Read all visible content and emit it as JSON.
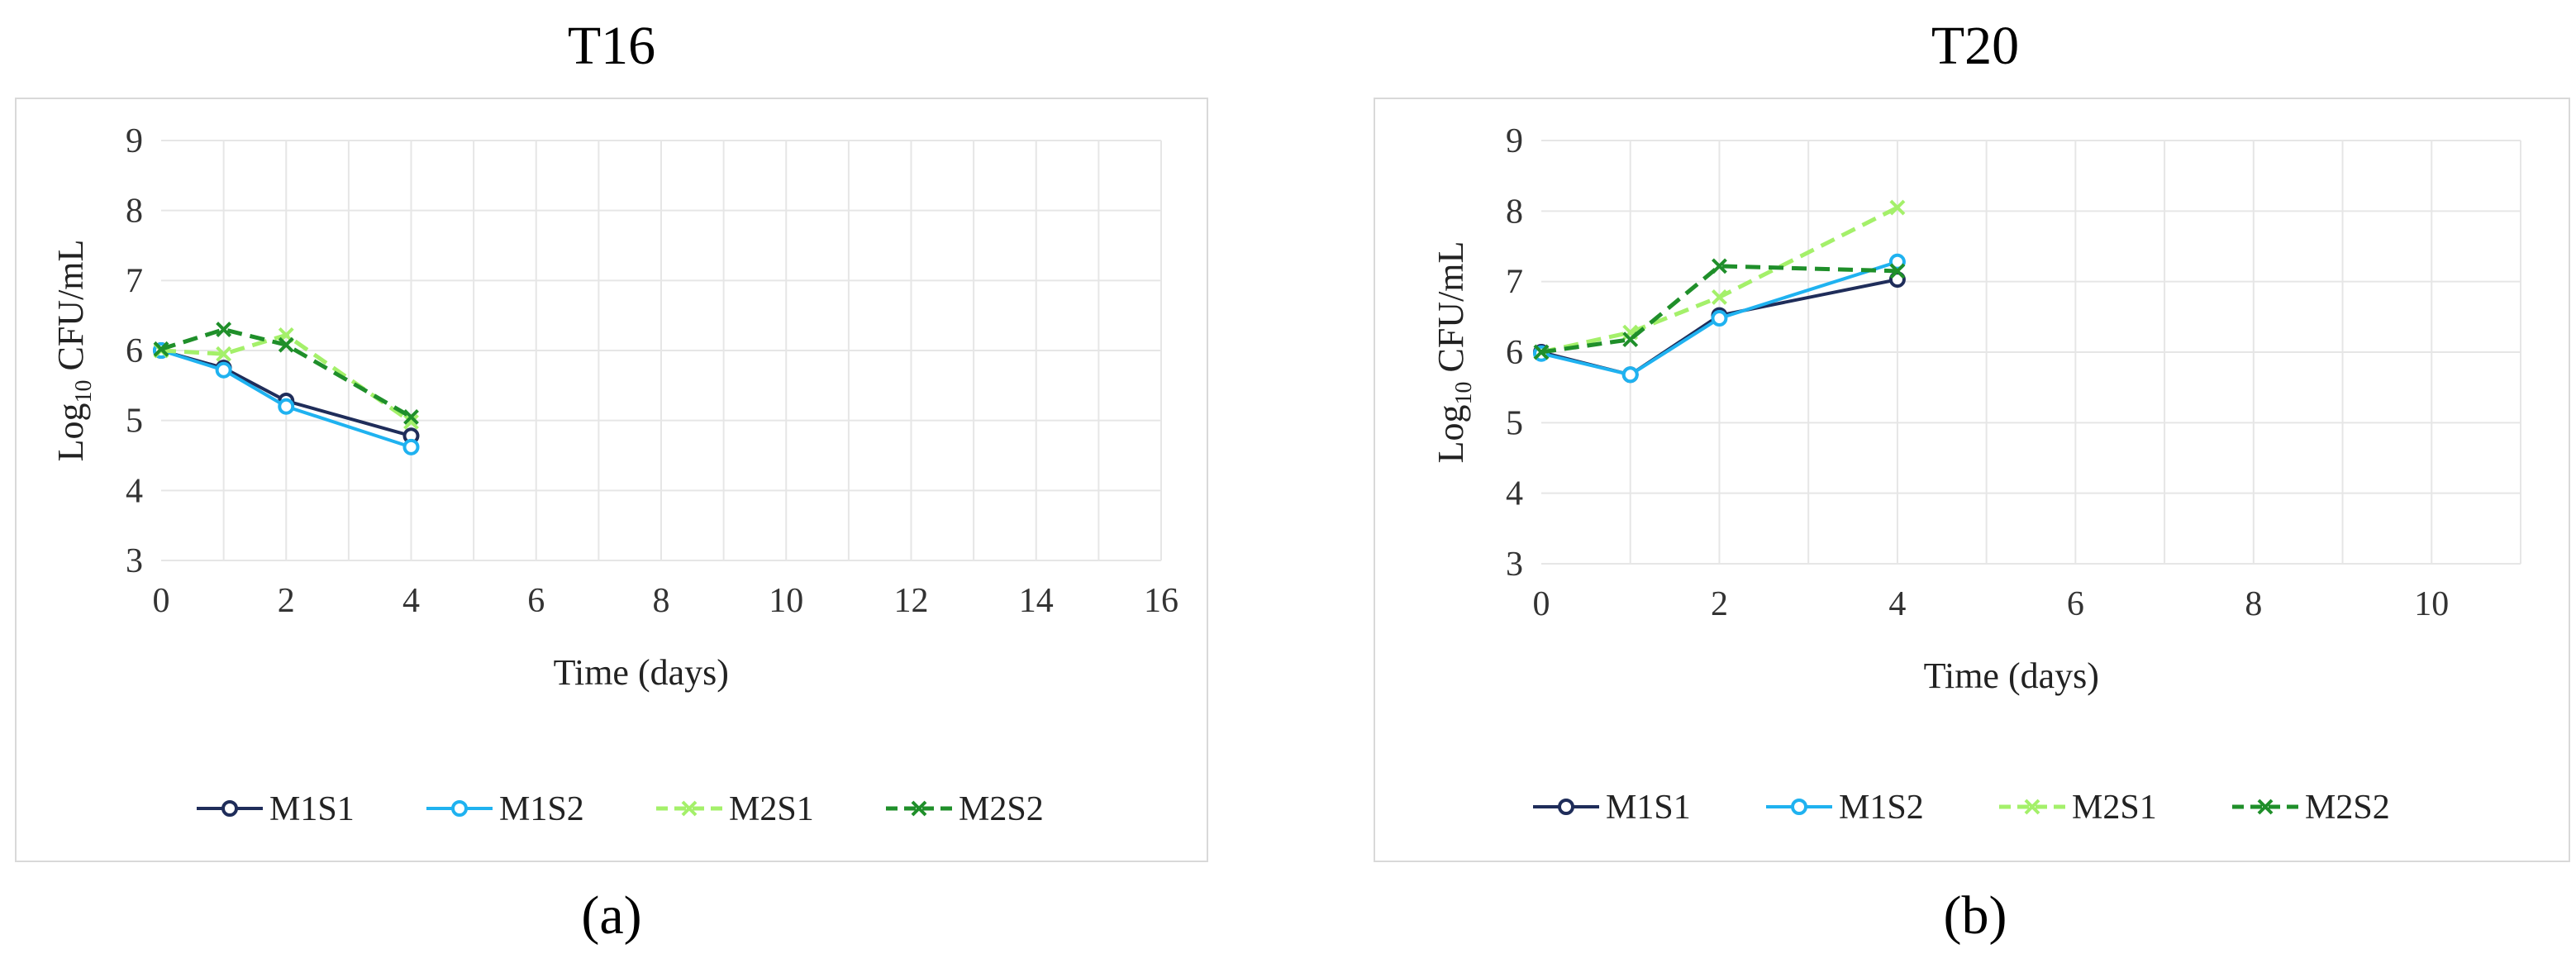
{
  "colors": {
    "M1S1": "#1f2d5a",
    "M1S2": "#1fb2f0",
    "M2S1": "#a4f06a",
    "M2S2": "#1f8f2a",
    "grid": "#e6e6e6",
    "frame": "#d9d9d9"
  },
  "panel_labels": [
    "(a)",
    "(b)"
  ],
  "chart_data": [
    {
      "type": "line",
      "title": "T16",
      "xlabel": "Time (days)",
      "ylabel_main": "Log",
      "ylabel_sub": "10",
      "ylabel_rest": " CFU/mL",
      "xlim": [
        0,
        16
      ],
      "ylim": [
        3,
        9
      ],
      "xticks": [
        0,
        2,
        4,
        6,
        8,
        10,
        12,
        14,
        16
      ],
      "yticks": [
        3,
        4,
        5,
        6,
        7,
        8,
        9
      ],
      "grid": true,
      "legend_position": "bottom",
      "series": [
        {
          "name": "M1S1",
          "x": [
            0,
            1,
            2,
            4
          ],
          "y": [
            6.0,
            5.75,
            5.28,
            4.78
          ],
          "style": "solid",
          "marker": "circle"
        },
        {
          "name": "M1S2",
          "x": [
            0,
            1,
            2,
            4
          ],
          "y": [
            6.0,
            5.72,
            5.2,
            4.62
          ],
          "style": "solid",
          "marker": "circle"
        },
        {
          "name": "M2S1",
          "x": [
            0,
            1,
            2,
            4
          ],
          "y": [
            6.0,
            5.95,
            6.22,
            4.98
          ],
          "style": "dashed",
          "marker": "x"
        },
        {
          "name": "M2S2",
          "x": [
            0,
            1,
            2,
            4
          ],
          "y": [
            6.02,
            6.3,
            6.08,
            5.05
          ],
          "style": "dashed",
          "marker": "x"
        }
      ]
    },
    {
      "type": "line",
      "title": "T20",
      "xlabel": "Time (days)",
      "ylabel_main": "Log",
      "ylabel_sub": "10",
      "ylabel_rest": " CFU/mL",
      "xlim": [
        0,
        11
      ],
      "ylim": [
        3,
        9
      ],
      "xticks": [
        0,
        2,
        4,
        6,
        8,
        10
      ],
      "yticks": [
        3,
        4,
        5,
        6,
        7,
        8,
        9
      ],
      "grid": true,
      "legend_position": "bottom",
      "series": [
        {
          "name": "M1S1",
          "x": [
            0,
            1,
            2,
            4
          ],
          "y": [
            6.0,
            5.68,
            6.52,
            7.03
          ],
          "style": "solid",
          "marker": "circle"
        },
        {
          "name": "M1S2",
          "x": [
            0,
            1,
            2,
            4
          ],
          "y": [
            5.98,
            5.68,
            6.48,
            7.28
          ],
          "style": "solid",
          "marker": "circle"
        },
        {
          "name": "M2S1",
          "x": [
            0,
            1,
            2,
            4
          ],
          "y": [
            6.0,
            6.28,
            6.78,
            8.05
          ],
          "style": "dashed",
          "marker": "x"
        },
        {
          "name": "M2S2",
          "x": [
            0,
            1,
            2,
            4
          ],
          "y": [
            6.0,
            6.18,
            7.22,
            7.15
          ],
          "style": "dashed",
          "marker": "x"
        }
      ]
    }
  ]
}
